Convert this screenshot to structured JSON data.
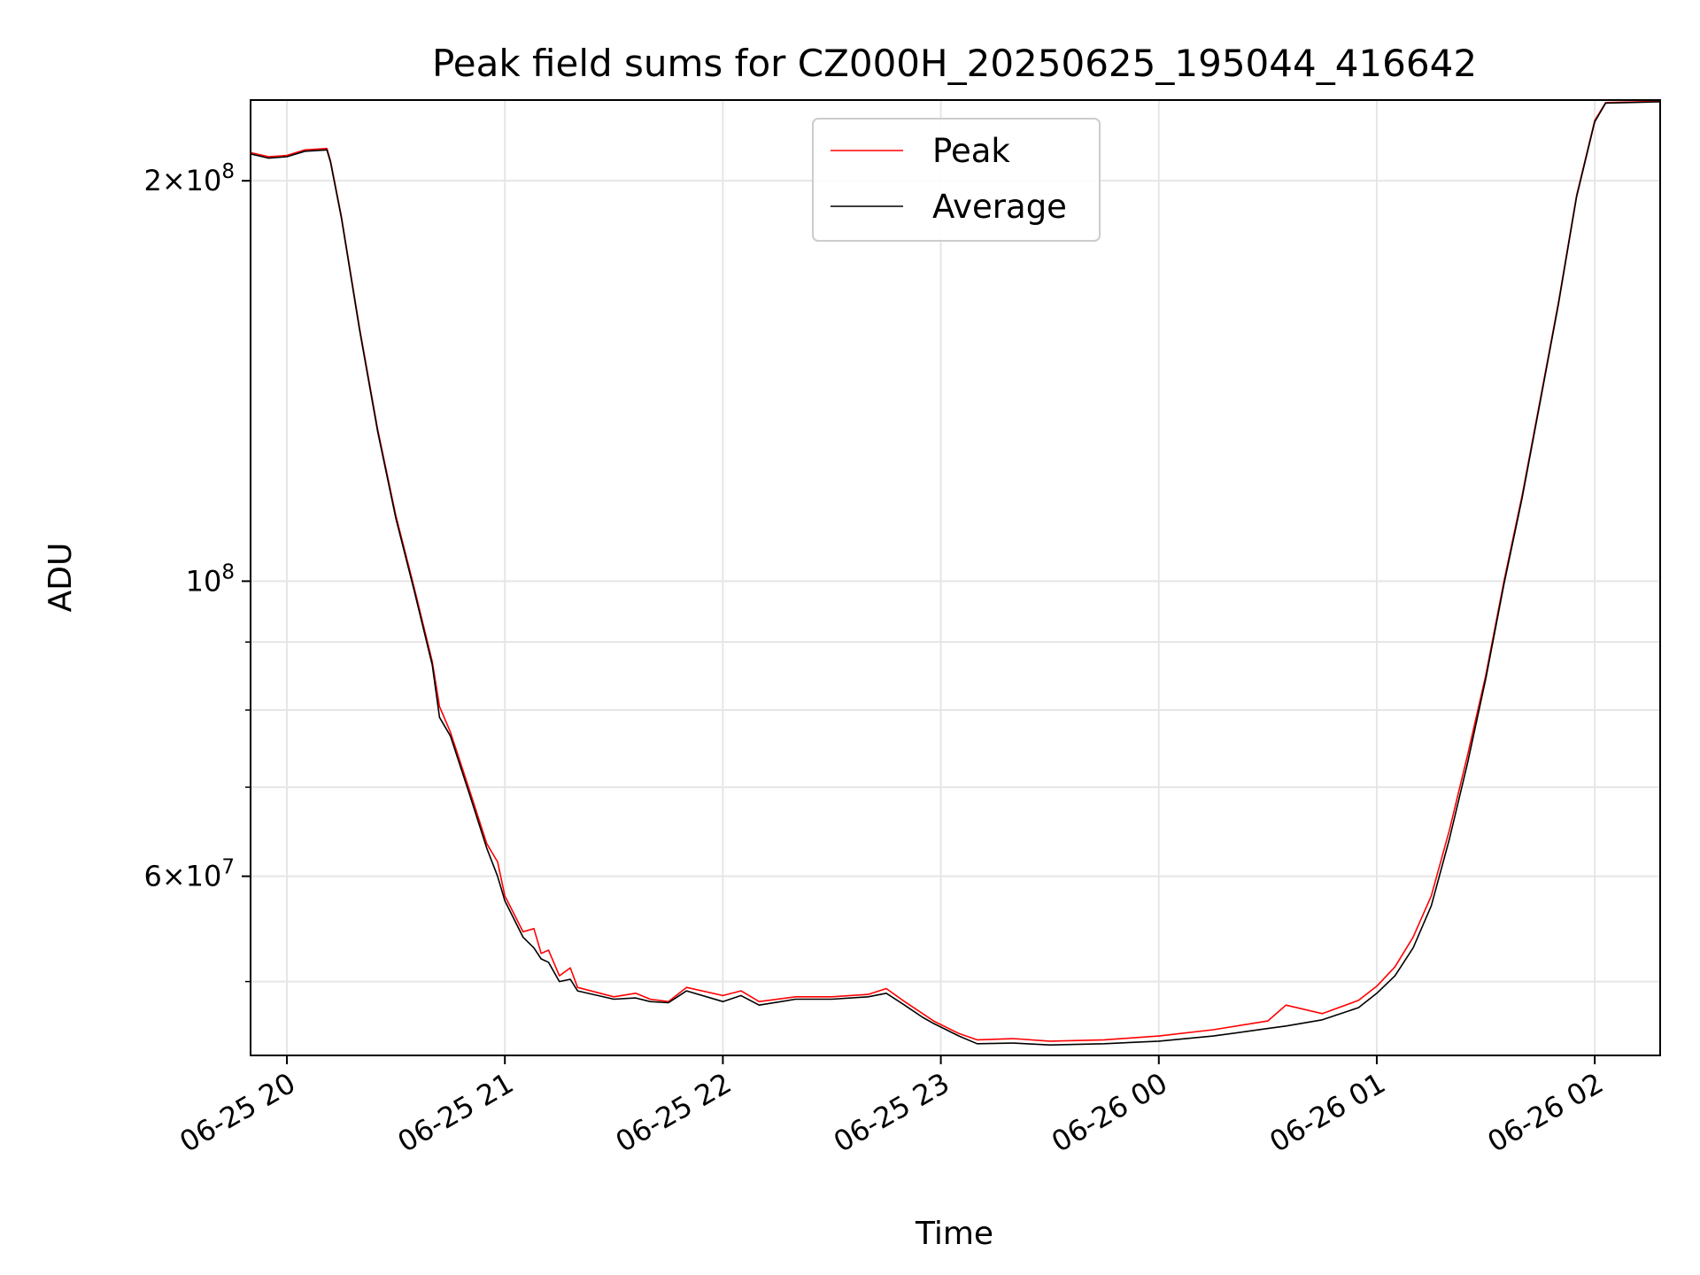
{
  "chart_data": {
    "type": "line",
    "title": "Peak field sums for CZ000H_20250625_195044_416642",
    "xlabel": "Time",
    "ylabel": "ADU",
    "y_scale": "log",
    "ylim": [
      44000000,
      230000000
    ],
    "xlim": [
      "2025-06-25 19:50",
      "2025-06-26 02:18"
    ],
    "x_ticks": [
      {
        "t": "2025-06-25 20:00",
        "label": "06-25 20"
      },
      {
        "t": "2025-06-25 21:00",
        "label": "06-25 21"
      },
      {
        "t": "2025-06-25 22:00",
        "label": "06-25 22"
      },
      {
        "t": "2025-06-25 23:00",
        "label": "06-25 23"
      },
      {
        "t": "2025-06-26 00:00",
        "label": "06-26 00"
      },
      {
        "t": "2025-06-26 01:00",
        "label": "06-26 01"
      },
      {
        "t": "2025-06-26 02:00",
        "label": "06-26 02"
      }
    ],
    "y_ticks": [
      {
        "value": 200000000,
        "base": "2×10",
        "exp": "8"
      },
      {
        "value": 100000000,
        "base": "10",
        "exp": "8"
      },
      {
        "value": 60000000,
        "base": "6×10",
        "exp": "7"
      }
    ],
    "y_minor_grid": [
      50000000,
      70000000,
      80000000,
      90000000
    ],
    "grid": true,
    "legend_position": "upper center",
    "series": [
      {
        "name": "Peak",
        "color": "#ff0000",
        "points": [
          [
            "2025-06-25 19:50",
            210000000
          ],
          [
            "2025-06-25 19:55",
            208500000
          ],
          [
            "2025-06-25 20:00",
            209000000
          ],
          [
            "2025-06-25 20:05",
            211000000
          ],
          [
            "2025-06-25 20:11",
            211500000
          ],
          [
            "2025-06-25 20:12",
            207000000
          ],
          [
            "2025-06-25 20:15",
            188000000
          ],
          [
            "2025-06-25 20:20",
            155000000
          ],
          [
            "2025-06-25 20:25",
            130000000
          ],
          [
            "2025-06-25 20:30",
            112000000
          ],
          [
            "2025-06-25 20:35",
            99000000
          ],
          [
            "2025-06-25 20:40",
            87000000
          ],
          [
            "2025-06-25 20:42",
            80500000
          ],
          [
            "2025-06-25 20:45",
            77000000
          ],
          [
            "2025-06-25 20:50",
            70000000
          ],
          [
            "2025-06-25 20:55",
            63500000
          ],
          [
            "2025-06-25 20:58",
            61500000
          ],
          [
            "2025-06-25 21:00",
            58000000
          ],
          [
            "2025-06-25 21:05",
            54500000
          ],
          [
            "2025-06-25 21:08",
            54800000
          ],
          [
            "2025-06-25 21:10",
            52500000
          ],
          [
            "2025-06-25 21:12",
            52800000
          ],
          [
            "2025-06-25 21:15",
            50500000
          ],
          [
            "2025-06-25 21:18",
            51200000
          ],
          [
            "2025-06-25 21:20",
            49500000
          ],
          [
            "2025-06-25 21:30",
            48700000
          ],
          [
            "2025-06-25 21:36",
            49000000
          ],
          [
            "2025-06-25 21:40",
            48500000
          ],
          [
            "2025-06-25 21:45",
            48300000
          ],
          [
            "2025-06-25 21:50",
            49500000
          ],
          [
            "2025-06-25 22:00",
            48800000
          ],
          [
            "2025-06-25 22:05",
            49200000
          ],
          [
            "2025-06-25 22:10",
            48300000
          ],
          [
            "2025-06-25 22:20",
            48700000
          ],
          [
            "2025-06-25 22:30",
            48700000
          ],
          [
            "2025-06-25 22:40",
            48900000
          ],
          [
            "2025-06-25 22:45",
            49400000
          ],
          [
            "2025-06-25 22:50",
            48300000
          ],
          [
            "2025-06-25 22:55",
            47300000
          ],
          [
            "2025-06-25 22:58",
            46700000
          ],
          [
            "2025-06-25 23:05",
            45700000
          ],
          [
            "2025-06-25 23:10",
            45200000
          ],
          [
            "2025-06-25 23:20",
            45300000
          ],
          [
            "2025-06-25 23:30",
            45100000
          ],
          [
            "2025-06-25 23:45",
            45200000
          ],
          [
            "2025-06-26 00:00",
            45500000
          ],
          [
            "2025-06-26 00:15",
            46000000
          ],
          [
            "2025-06-26 00:30",
            46700000
          ],
          [
            "2025-06-26 00:35",
            48000000
          ],
          [
            "2025-06-26 00:45",
            47300000
          ],
          [
            "2025-06-26 00:55",
            48400000
          ],
          [
            "2025-06-26 01:00",
            49600000
          ],
          [
            "2025-06-26 01:05",
            51300000
          ],
          [
            "2025-06-26 01:10",
            54000000
          ],
          [
            "2025-06-26 01:15",
            58000000
          ],
          [
            "2025-06-26 01:20",
            65000000
          ],
          [
            "2025-06-26 01:25",
            74000000
          ],
          [
            "2025-06-26 01:30",
            85000000
          ],
          [
            "2025-06-26 01:35",
            100000000
          ],
          [
            "2025-06-26 01:40",
            116000000
          ],
          [
            "2025-06-26 01:45",
            137000000
          ],
          [
            "2025-06-26 01:50",
            162000000
          ],
          [
            "2025-06-26 01:55",
            195000000
          ],
          [
            "2025-06-26 02:00",
            222000000
          ],
          [
            "2025-06-26 02:03",
            229000000
          ],
          [
            "2025-06-26 02:18",
            229500000
          ]
        ]
      },
      {
        "name": "Average",
        "color": "#000000",
        "points": [
          [
            "2025-06-25 19:50",
            209500000
          ],
          [
            "2025-06-25 19:55",
            208000000
          ],
          [
            "2025-06-25 20:00",
            208500000
          ],
          [
            "2025-06-25 20:05",
            210500000
          ],
          [
            "2025-06-25 20:11",
            211000000
          ],
          [
            "2025-06-25 20:12",
            206500000
          ],
          [
            "2025-06-25 20:15",
            187500000
          ],
          [
            "2025-06-25 20:20",
            154500000
          ],
          [
            "2025-06-25 20:25",
            129500000
          ],
          [
            "2025-06-25 20:30",
            111500000
          ],
          [
            "2025-06-25 20:35",
            98500000
          ],
          [
            "2025-06-25 20:40",
            86500000
          ],
          [
            "2025-06-25 20:42",
            79000000
          ],
          [
            "2025-06-25 20:45",
            76500000
          ],
          [
            "2025-06-25 20:50",
            69500000
          ],
          [
            "2025-06-25 20:55",
            63000000
          ],
          [
            "2025-06-25 20:58",
            60000000
          ],
          [
            "2025-06-25 21:00",
            57500000
          ],
          [
            "2025-06-25 21:05",
            54000000
          ],
          [
            "2025-06-25 21:08",
            53000000
          ],
          [
            "2025-06-25 21:10",
            52000000
          ],
          [
            "2025-06-25 21:12",
            51700000
          ],
          [
            "2025-06-25 21:15",
            50000000
          ],
          [
            "2025-06-25 21:18",
            50200000
          ],
          [
            "2025-06-25 21:20",
            49200000
          ],
          [
            "2025-06-25 21:30",
            48500000
          ],
          [
            "2025-06-25 21:36",
            48600000
          ],
          [
            "2025-06-25 21:40",
            48300000
          ],
          [
            "2025-06-25 21:45",
            48200000
          ],
          [
            "2025-06-25 21:50",
            49200000
          ],
          [
            "2025-06-25 22:00",
            48300000
          ],
          [
            "2025-06-25 22:05",
            48800000
          ],
          [
            "2025-06-25 22:10",
            48000000
          ],
          [
            "2025-06-25 22:20",
            48500000
          ],
          [
            "2025-06-25 22:30",
            48500000
          ],
          [
            "2025-06-25 22:40",
            48700000
          ],
          [
            "2025-06-25 22:45",
            49000000
          ],
          [
            "2025-06-25 22:50",
            48000000
          ],
          [
            "2025-06-25 22:55",
            47000000
          ],
          [
            "2025-06-25 22:58",
            46500000
          ],
          [
            "2025-06-25 23:05",
            45500000
          ],
          [
            "2025-06-25 23:10",
            44900000
          ],
          [
            "2025-06-25 23:20",
            44950000
          ],
          [
            "2025-06-25 23:30",
            44800000
          ],
          [
            "2025-06-25 23:45",
            44900000
          ],
          [
            "2025-06-26 00:00",
            45100000
          ],
          [
            "2025-06-26 00:15",
            45500000
          ],
          [
            "2025-06-26 00:30",
            46100000
          ],
          [
            "2025-06-26 00:35",
            46300000
          ],
          [
            "2025-06-26 00:45",
            46800000
          ],
          [
            "2025-06-26 00:55",
            47800000
          ],
          [
            "2025-06-26 01:00",
            49000000
          ],
          [
            "2025-06-26 01:05",
            50500000
          ],
          [
            "2025-06-26 01:10",
            53000000
          ],
          [
            "2025-06-26 01:15",
            57000000
          ],
          [
            "2025-06-26 01:20",
            64000000
          ],
          [
            "2025-06-26 01:25",
            73000000
          ],
          [
            "2025-06-26 01:30",
            84500000
          ],
          [
            "2025-06-26 01:35",
            99500000
          ],
          [
            "2025-06-26 01:40",
            115500000
          ],
          [
            "2025-06-26 01:45",
            136500000
          ],
          [
            "2025-06-26 01:50",
            161500000
          ],
          [
            "2025-06-26 01:55",
            194500000
          ],
          [
            "2025-06-26 02:00",
            221500000
          ],
          [
            "2025-06-26 02:03",
            228800000
          ],
          [
            "2025-06-26 02:18",
            229300000
          ]
        ]
      }
    ]
  }
}
